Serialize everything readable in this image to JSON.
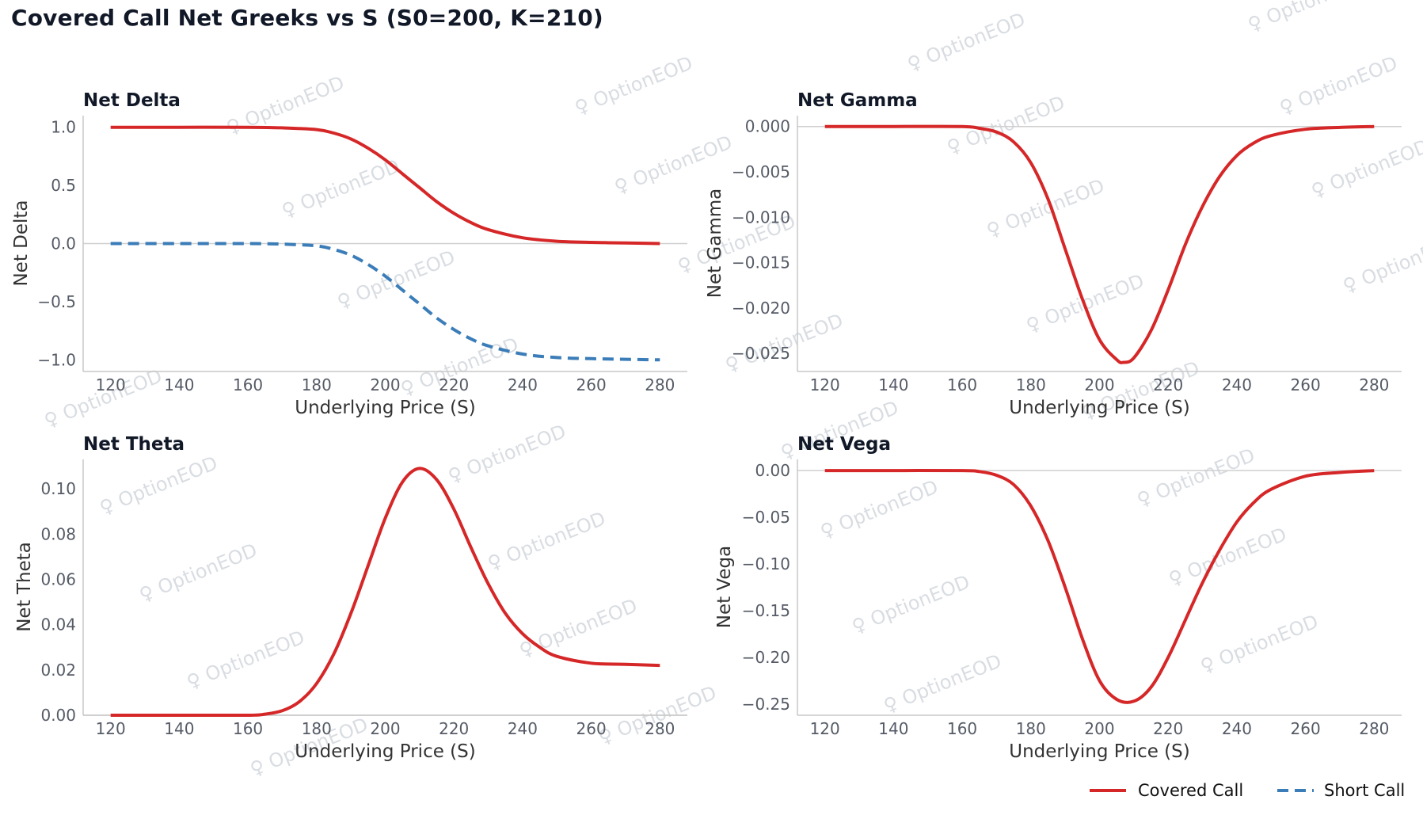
{
  "figure": {
    "title": "Covered Call Net Greeks vs S (S0=200, K=210)",
    "watermark": "OptionEOD",
    "colors": {
      "covered_call": "#d62728",
      "short_call": "#3b7db8",
      "zero_line": "#cfcfcf",
      "axis": "#c8c8c8"
    }
  },
  "legend": {
    "items": [
      "Covered Call",
      "Short Call"
    ],
    "placement": "bottom-right"
  },
  "chart_data": [
    {
      "id": "delta",
      "type": "line",
      "title": "Net Delta",
      "xlabel": "Underlying Price (S)",
      "ylabel": "Net Delta",
      "xlim": [
        112,
        288
      ],
      "ylim": [
        -1.1,
        1.1
      ],
      "xticks": [
        120,
        140,
        160,
        180,
        200,
        220,
        240,
        260,
        280
      ],
      "yticks": [
        1.0,
        0.5,
        0.0,
        -0.5,
        -1.0
      ],
      "ytick_labels": [
        "1.0",
        "0.5",
        "0.0",
        "−0.5",
        "−1.0"
      ],
      "grid": false,
      "series": [
        {
          "name": "Covered Call",
          "style": "solid",
          "x": [
            120,
            140,
            160,
            170,
            180,
            185,
            190,
            195,
            200,
            205,
            210,
            215,
            220,
            225,
            230,
            240,
            250,
            260,
            270,
            280
          ],
          "y": [
            1.0,
            1.0,
            1.0,
            0.995,
            0.98,
            0.95,
            0.9,
            0.82,
            0.72,
            0.6,
            0.48,
            0.36,
            0.26,
            0.18,
            0.12,
            0.05,
            0.02,
            0.01,
            0.005,
            0.0
          ]
        },
        {
          "name": "Short Call",
          "style": "dashed",
          "x": [
            120,
            140,
            160,
            170,
            180,
            185,
            190,
            195,
            200,
            205,
            210,
            215,
            220,
            225,
            230,
            240,
            250,
            260,
            270,
            280
          ],
          "y": [
            0.0,
            0.0,
            0.0,
            -0.005,
            -0.02,
            -0.05,
            -0.1,
            -0.18,
            -0.28,
            -0.4,
            -0.52,
            -0.64,
            -0.74,
            -0.82,
            -0.88,
            -0.95,
            -0.98,
            -0.99,
            -0.995,
            -1.0
          ]
        }
      ]
    },
    {
      "id": "gamma",
      "type": "line",
      "title": "Net Gamma",
      "xlabel": "Underlying Price (S)",
      "ylabel": "Net Gamma",
      "xlim": [
        112,
        288
      ],
      "ylim": [
        -0.027,
        0.0012
      ],
      "xticks": [
        120,
        140,
        160,
        180,
        200,
        220,
        240,
        260,
        280
      ],
      "yticks": [
        0.0,
        -0.005,
        -0.01,
        -0.015,
        -0.02,
        -0.025
      ],
      "ytick_labels": [
        "0.000",
        "−0.005",
        "−0.010",
        "−0.015",
        "−0.020",
        "−0.025"
      ],
      "grid": false,
      "series": [
        {
          "name": "Covered Call",
          "style": "solid",
          "x": [
            120,
            140,
            160,
            165,
            170,
            175,
            180,
            185,
            190,
            195,
            200,
            205,
            207,
            210,
            215,
            220,
            225,
            230,
            235,
            240,
            245,
            250,
            260,
            270,
            280
          ],
          "y": [
            0.0,
            0.0,
            0.0,
            -0.0002,
            -0.0006,
            -0.0017,
            -0.004,
            -0.008,
            -0.0135,
            -0.019,
            -0.0235,
            -0.0257,
            -0.026,
            -0.0255,
            -0.0225,
            -0.018,
            -0.013,
            -0.0088,
            -0.0055,
            -0.0032,
            -0.0018,
            -0.001,
            -0.0003,
            -0.0001,
            0.0
          ]
        }
      ]
    },
    {
      "id": "theta",
      "type": "line",
      "title": "Net Theta",
      "xlabel": "Underlying Price (S)",
      "ylabel": "Net Theta",
      "xlim": [
        112,
        288
      ],
      "ylim": [
        0.0,
        0.113
      ],
      "xticks": [
        120,
        140,
        160,
        180,
        200,
        220,
        240,
        260,
        280
      ],
      "yticks": [
        0.0,
        0.02,
        0.04,
        0.06,
        0.08,
        0.1
      ],
      "ytick_labels": [
        "0.00",
        "0.02",
        "0.04",
        "0.06",
        "0.08",
        "0.10"
      ],
      "grid": false,
      "series": [
        {
          "name": "Covered Call",
          "style": "solid",
          "x": [
            120,
            140,
            160,
            165,
            170,
            175,
            180,
            185,
            190,
            195,
            200,
            205,
            210,
            215,
            220,
            225,
            230,
            235,
            240,
            245,
            250,
            260,
            270,
            280
          ],
          "y": [
            0.0,
            0.0,
            0.0,
            0.0005,
            0.002,
            0.006,
            0.014,
            0.027,
            0.045,
            0.066,
            0.087,
            0.103,
            0.109,
            0.104,
            0.091,
            0.074,
            0.058,
            0.045,
            0.036,
            0.03,
            0.026,
            0.023,
            0.0225,
            0.022
          ]
        }
      ]
    },
    {
      "id": "vega",
      "type": "line",
      "title": "Net Vega",
      "xlabel": "Underlying Price (S)",
      "ylabel": "Net Vega",
      "xlim": [
        112,
        288
      ],
      "ylim": [
        -0.262,
        0.012
      ],
      "xticks": [
        120,
        140,
        160,
        180,
        200,
        220,
        240,
        260,
        280
      ],
      "yticks": [
        0.0,
        -0.05,
        -0.1,
        -0.15,
        -0.2,
        -0.25
      ],
      "ytick_labels": [
        "0.00",
        "−0.05",
        "−0.10",
        "−0.15",
        "−0.20",
        "−0.25"
      ],
      "grid": false,
      "series": [
        {
          "name": "Covered Call",
          "style": "solid",
          "x": [
            120,
            140,
            160,
            165,
            170,
            175,
            180,
            185,
            190,
            195,
            200,
            205,
            210,
            215,
            220,
            225,
            230,
            235,
            240,
            245,
            250,
            260,
            270,
            280
          ],
          "y": [
            0.0,
            0.0,
            0.0,
            -0.001,
            -0.005,
            -0.015,
            -0.038,
            -0.075,
            -0.125,
            -0.18,
            -0.225,
            -0.245,
            -0.247,
            -0.232,
            -0.2,
            -0.16,
            -0.12,
            -0.085,
            -0.055,
            -0.034,
            -0.02,
            -0.006,
            -0.002,
            0.0
          ]
        }
      ]
    }
  ]
}
